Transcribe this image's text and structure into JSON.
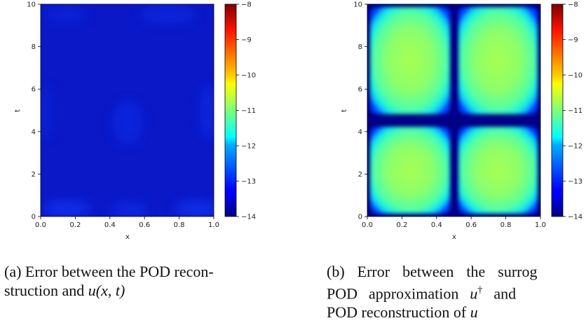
{
  "chart_data": [
    {
      "type": "heatmap",
      "xlabel": "x",
      "ylabel": "t",
      "xlim": [
        0.0,
        1.0
      ],
      "ylim": [
        0,
        10
      ],
      "x_ticks": [
        "0.0",
        "0.2",
        "0.4",
        "0.6",
        "0.8",
        "1.0"
      ],
      "y_ticks": [
        "0",
        "2",
        "4",
        "6",
        "8",
        "10"
      ],
      "colorbar": {
        "min": -14,
        "max": -8,
        "ticks": [
          "−8",
          "−9",
          "−10",
          "−11",
          "−12",
          "−13",
          "−14"
        ],
        "colormap": "jet"
      },
      "field_level": "approximately -14 (uniform low error, slight lighter patches near edges and centre)",
      "caption": {
        "label": "(a)",
        "line1": "Error between the POD recon-",
        "line2": "struction and ",
        "line2_math": "u(x, t)"
      }
    },
    {
      "type": "heatmap",
      "xlabel": "x",
      "ylabel": "t",
      "xlim": [
        0.0,
        1.0
      ],
      "ylim": [
        0,
        10
      ],
      "x_ticks": [
        "0.0",
        "0.2",
        "0.4",
        "0.6",
        "0.8",
        "1.0"
      ],
      "y_ticks": [
        "0",
        "2",
        "4",
        "6",
        "8",
        "10"
      ],
      "colorbar": {
        "min": -14,
        "max": -8,
        "ticks": [
          "−8",
          "−9",
          "−10",
          "−11",
          "−12",
          "−13",
          "−14"
        ],
        "colormap": "jet"
      },
      "field_level": "about -11 to -11.5 in four quadrant cells, dropping to -14 along x = 0.5, t = 4.5 and at the domain boundaries",
      "dividers": {
        "x": 0.5,
        "t": 4.5
      },
      "caption": {
        "label": "(b)",
        "line1_words": [
          "(b)",
          "Error",
          "between",
          "the",
          "surrog"
        ],
        "line2_words": [
          "POD",
          "approximation",
          "u",
          "and"
        ],
        "dagger": "†",
        "line3": "POD reconstruction of ",
        "line3_math": "u"
      }
    }
  ]
}
